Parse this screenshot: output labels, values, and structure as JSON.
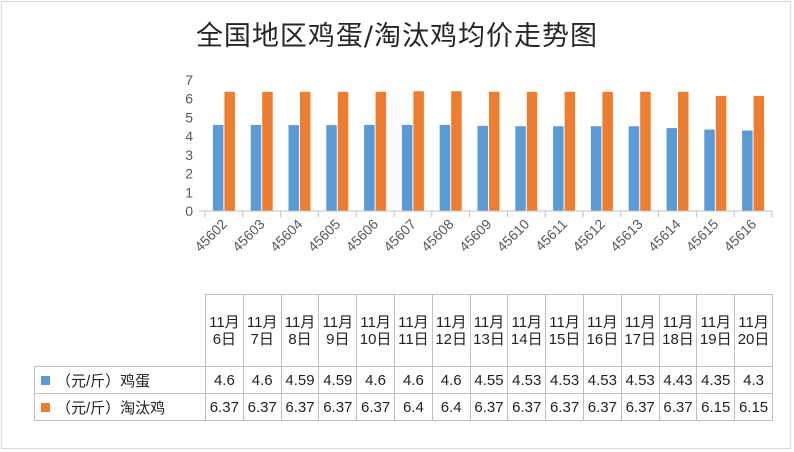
{
  "chart_data": {
    "type": "bar",
    "title": "全国地区鸡蛋/淘汰鸡均价走势图",
    "categories": [
      "45602",
      "45603",
      "45604",
      "45605",
      "45606",
      "45607",
      "45608",
      "45609",
      "45610",
      "45611",
      "45612",
      "45613",
      "45614",
      "45615",
      "45616"
    ],
    "date_labels": [
      "11月6日",
      "11月7日",
      "11月8日",
      "11月9日",
      "11月10日",
      "11月11日",
      "11月12日",
      "11月13日",
      "11月14日",
      "11月15日",
      "11月16日",
      "11月17日",
      "11月18日",
      "11月19日",
      "11月20日"
    ],
    "series": [
      {
        "name": "（元/斤）鸡蛋",
        "color": "#5B9BD5",
        "values": [
          4.6,
          4.6,
          4.59,
          4.59,
          4.6,
          4.6,
          4.6,
          4.55,
          4.53,
          4.53,
          4.53,
          4.53,
          4.43,
          4.35,
          4.3
        ]
      },
      {
        "name": "（元/斤）淘汰鸡",
        "color": "#ED7D31",
        "values": [
          6.37,
          6.37,
          6.37,
          6.37,
          6.37,
          6.4,
          6.4,
          6.37,
          6.37,
          6.37,
          6.37,
          6.37,
          6.37,
          6.15,
          6.15
        ]
      }
    ],
    "ylim": [
      0,
      7
    ],
    "yticks": [
      0,
      1,
      2,
      3,
      4,
      5,
      6,
      7
    ],
    "grid": false,
    "legend": "data-table"
  }
}
